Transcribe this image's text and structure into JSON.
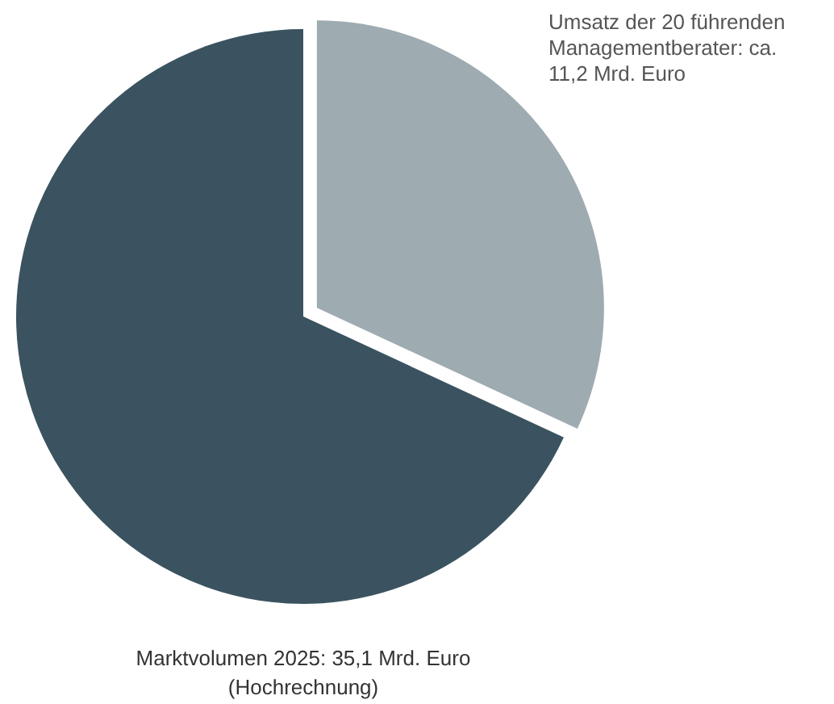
{
  "chart_data": {
    "type": "pie",
    "categories": [
      "Umsatz der 20 führenden Managementberater: ca. 11,2 Mrd. Euro",
      null
    ],
    "values": [
      11.2,
      23.9
    ],
    "colors": [
      "#9eabb1",
      "#3b5360"
    ],
    "annotations": [
      "Marktvolumen 2025: 35,1 Mrd. Euro (Hochrechnung)"
    ]
  }
}
